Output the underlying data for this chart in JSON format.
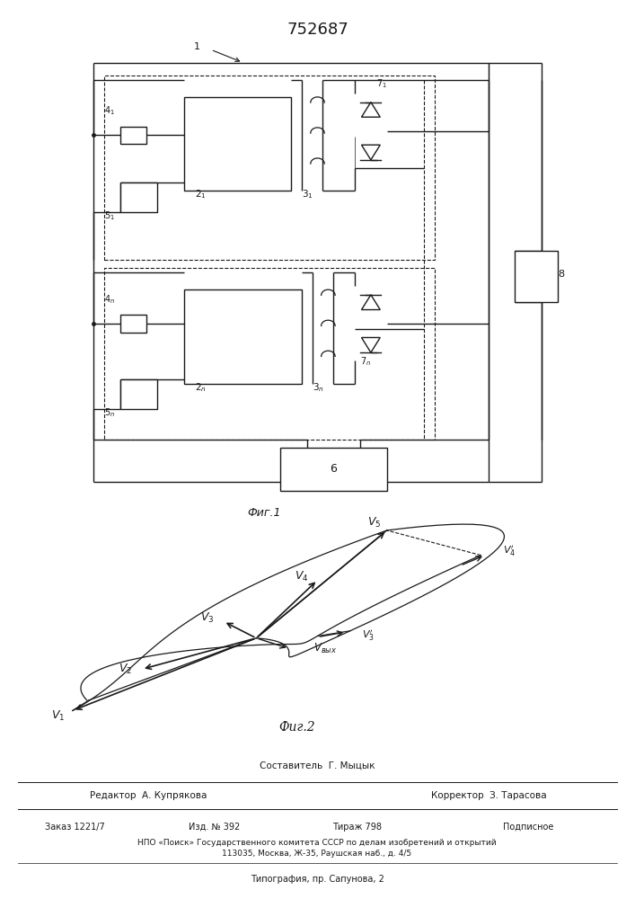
{
  "title": "752687",
  "fig1_label": "Фиг.1",
  "fig2_label": "Фиг.2",
  "bg_color": "#ffffff",
  "paper_color": "#f8f8f6",
  "line_color": "#1a1a1a",
  "footer_sestavitel": "Составитель  Г. Мыцык",
  "footer_redaktor": "Редактор  А. Купрякова",
  "footer_korrektor": "Корректор  З. Тарасова",
  "footer_zakaz": "Заказ 1221/7",
  "footer_izd": "Изд. № 392",
  "footer_tirazh": "Тираж 798",
  "footer_podpisnoe": "Подписное",
  "footer_npo": "НПО «Поиск» Государственного комитета СССР по делам изобретений и открытий",
  "footer_addr": "113035, Москва, Ж-35, Раушская наб., д. 4/5",
  "footer_tipograf": "Типография, пр. Сапунова, 2"
}
